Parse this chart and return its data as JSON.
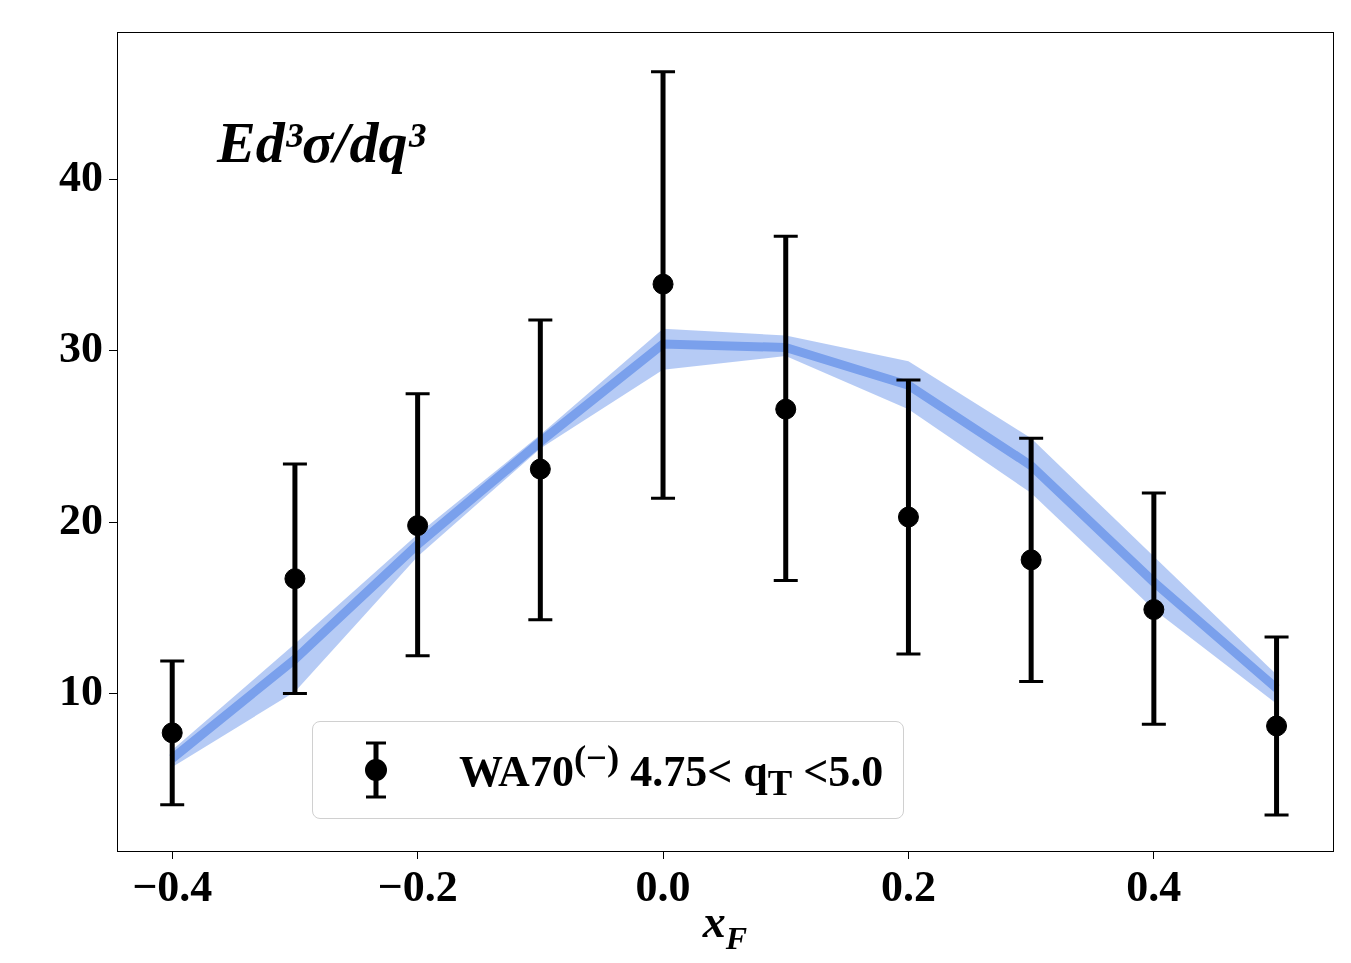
{
  "chart_data": {
    "type": "line",
    "xlabel": "x$_{F}$",
    "annotations": [
      "Ed³σ/dq³"
    ],
    "legend": "bottom",
    "x": [
      -0.4,
      -0.3,
      -0.2,
      -0.1,
      0.0,
      0.1,
      0.2,
      0.3,
      0.4,
      0.5
    ],
    "xlim": [
      -0.445,
      0.546
    ],
    "ylim": [
      0.8,
      48.6
    ],
    "xticks": [
      {
        "value": -0.4,
        "label": "−0.4"
      },
      {
        "value": -0.2,
        "label": "−0.2"
      },
      {
        "value": 0,
        "label": "0.0"
      },
      {
        "value": 0.2,
        "label": "0.2"
      },
      {
        "value": 0.4,
        "label": "0.4"
      }
    ],
    "yticks": [
      10,
      20,
      30,
      40
    ],
    "series": [
      {
        "type": "line",
        "color": "#7aa0ec",
        "values": [
          6.2,
          12.0,
          18.7,
          24.7,
          30.4,
          30.2,
          28.0,
          23.3,
          16.5,
          10.3
        ],
        "lower": [
          5.7,
          10.1,
          18.0,
          24.3,
          28.9,
          29.7,
          26.6,
          21.7,
          14.9,
          9.4
        ],
        "upper": [
          6.7,
          12.9,
          19.3,
          25.1,
          31.3,
          30.9,
          29.4,
          24.9,
          18.0,
          11.1
        ]
      },
      {
        "type": "scatter",
        "name": "WA70$^{(−)}$ 4.75< q$_{T}$ <5.0",
        "color": "#000000",
        "marker": "circle",
        "values": [
          7.7,
          16.7,
          19.8,
          23.1,
          33.9,
          26.6,
          20.3,
          17.8,
          14.9,
          8.1
        ],
        "errors": [
          [
            3.5,
            11.9
          ],
          [
            10.0,
            23.4
          ],
          [
            12.2,
            27.5
          ],
          [
            14.3,
            31.8
          ],
          [
            21.4,
            46.3
          ],
          [
            16.6,
            36.7
          ],
          [
            12.3,
            28.3
          ],
          [
            10.7,
            24.9
          ],
          [
            8.2,
            21.7
          ],
          [
            2.9,
            13.3
          ]
        ]
      }
    ]
  }
}
